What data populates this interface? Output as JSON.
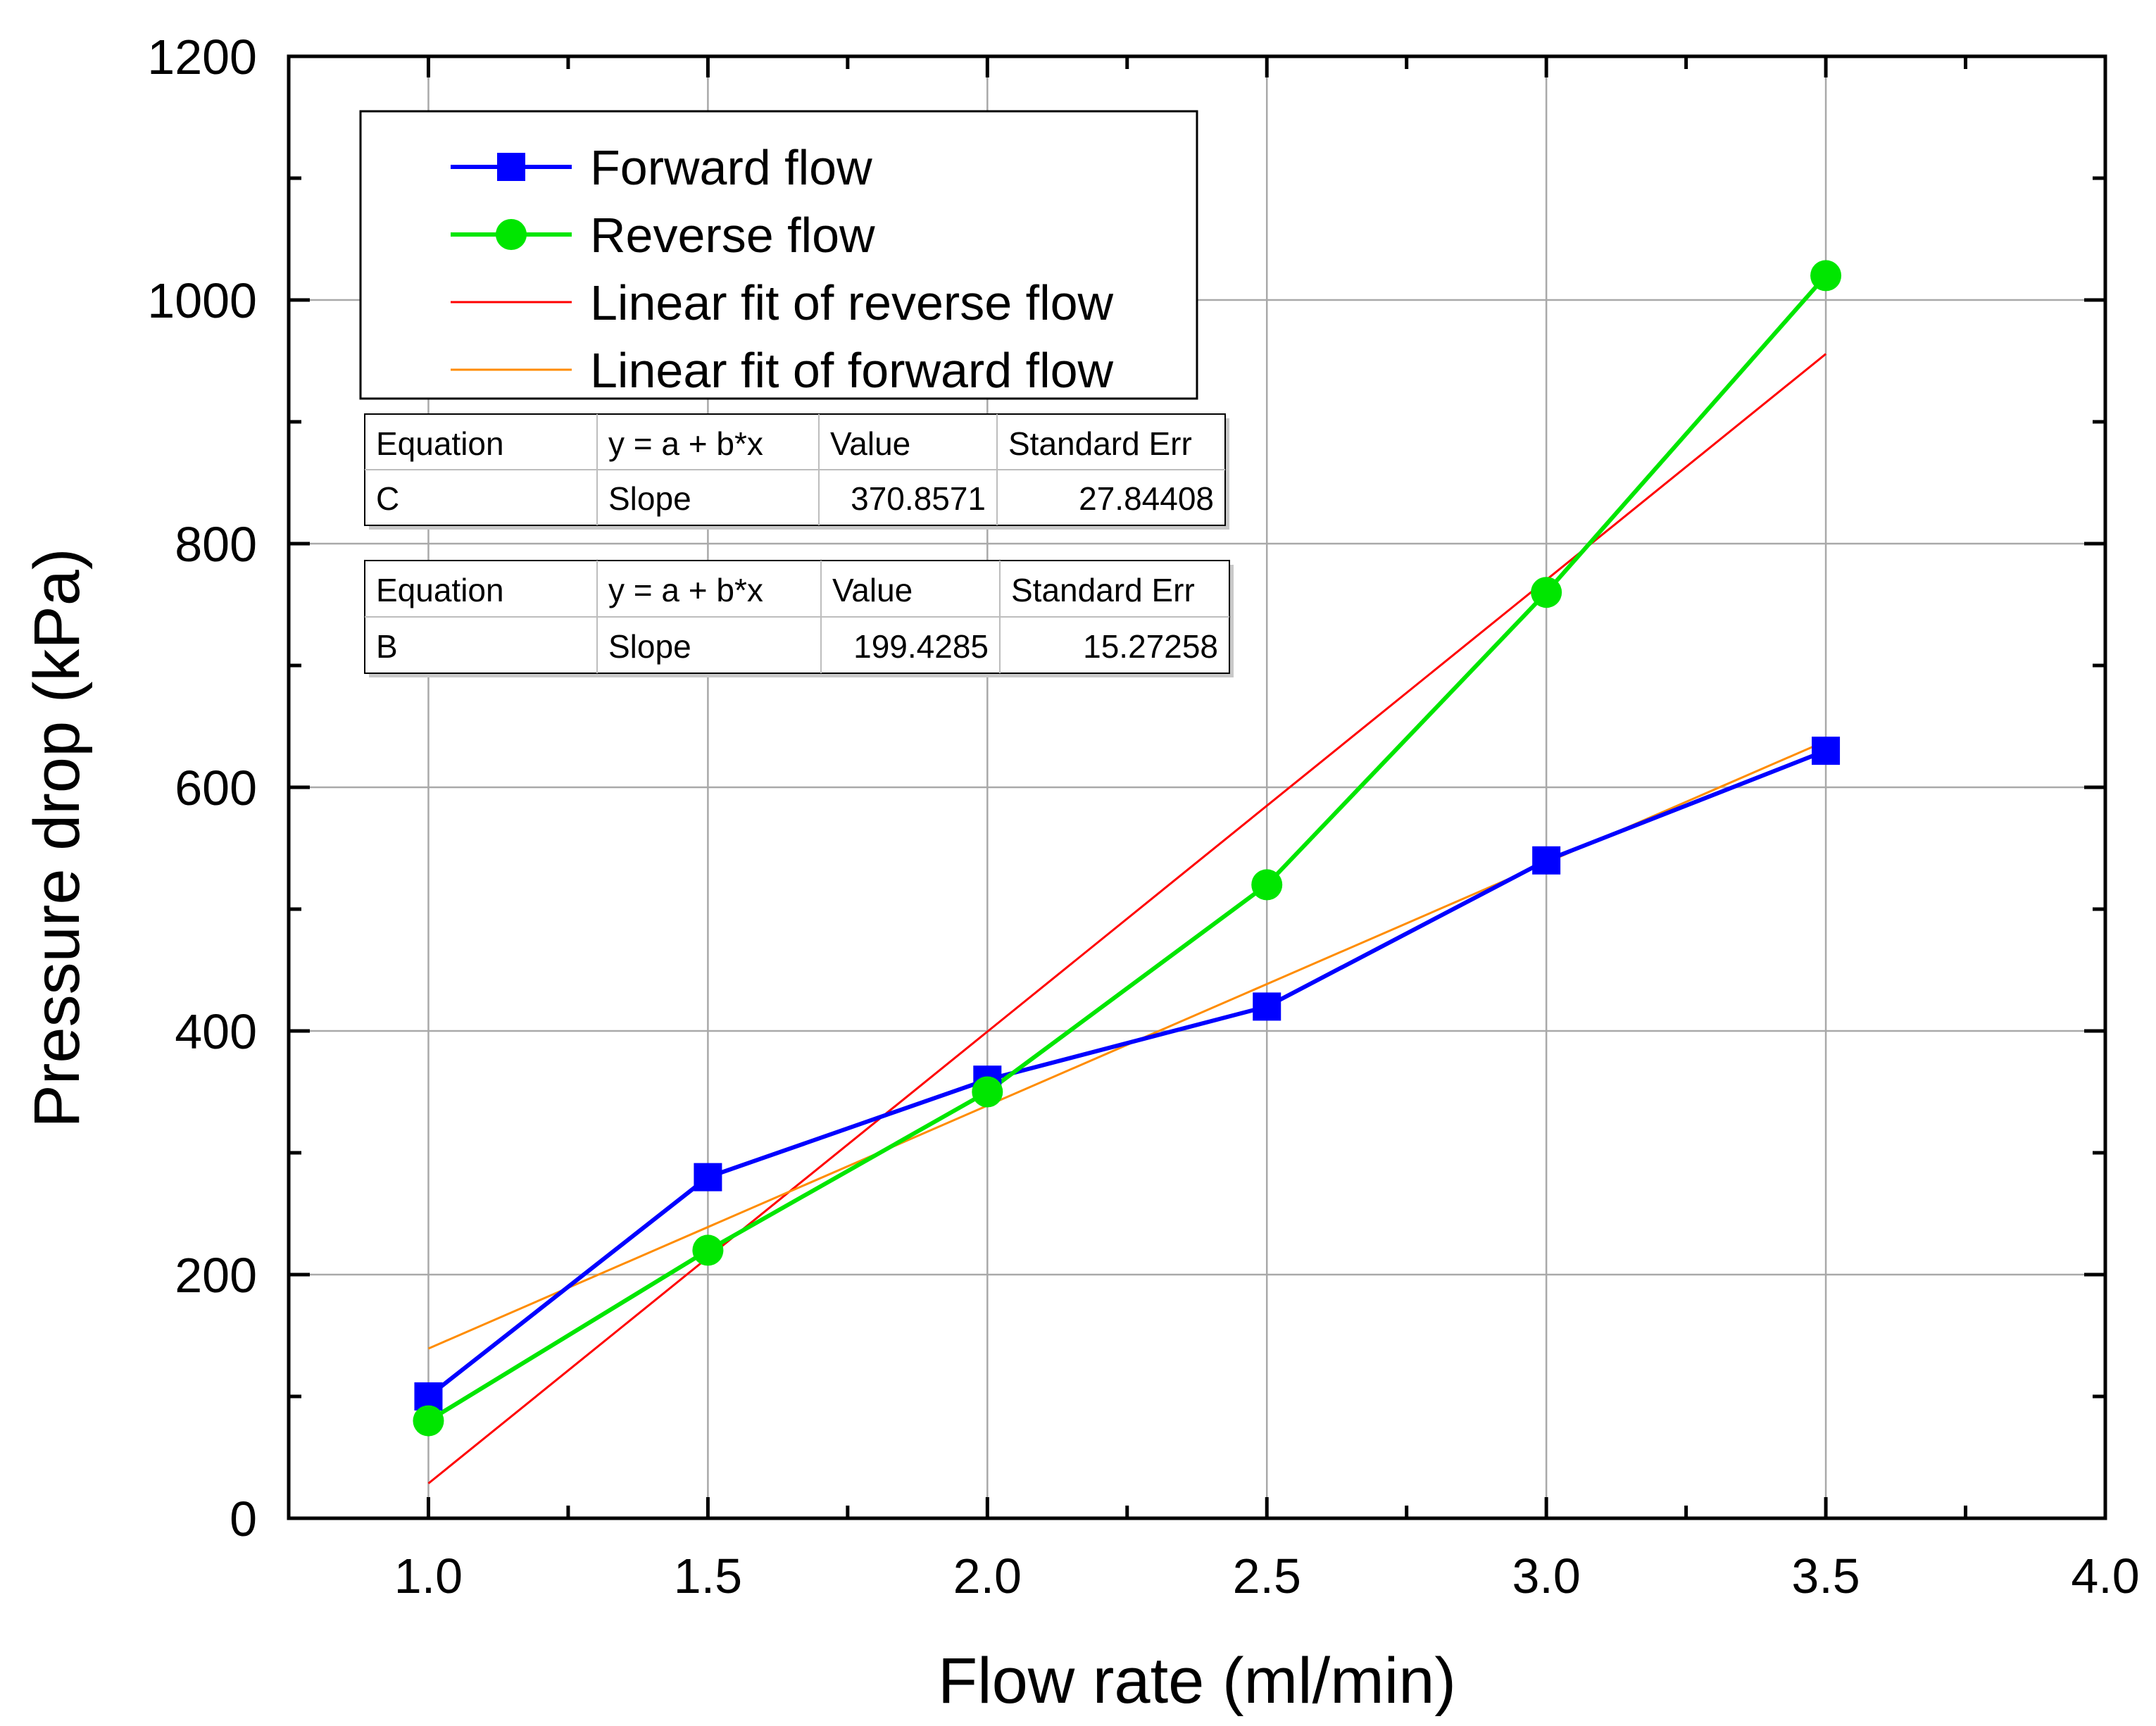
{
  "chart_data": {
    "type": "line",
    "title": "",
    "xlabel": "Flow rate (ml/min)",
    "ylabel": "Pressure drop (kPa)",
    "xlim": [
      0.75,
      4.0
    ],
    "ylim": [
      0,
      1200
    ],
    "x_ticks": [
      1.0,
      1.5,
      2.0,
      2.5,
      3.0,
      3.5,
      4.0
    ],
    "x_tick_labels": [
      "1.0",
      "1.5",
      "2.0",
      "2.5",
      "3.0",
      "3.5",
      "4.0"
    ],
    "y_ticks": [
      0,
      200,
      400,
      600,
      800,
      1000,
      1200
    ],
    "y_tick_labels": [
      "0",
      "200",
      "400",
      "600",
      "800",
      "1000",
      "1200"
    ],
    "grid": true,
    "legend_position": "top-left",
    "series": [
      {
        "name": "Forward flow",
        "color": "#0000ff",
        "marker": "square",
        "x": [
          1.0,
          1.5,
          2.0,
          2.5,
          3.0,
          3.5
        ],
        "values": [
          100,
          280,
          360,
          420,
          540,
          630
        ]
      },
      {
        "name": "Reverse flow",
        "color": "#00e600",
        "marker": "circle",
        "x": [
          1.0,
          1.5,
          2.0,
          2.5,
          3.0,
          3.5
        ],
        "values": [
          80,
          220,
          350,
          520,
          760,
          1020
        ]
      },
      {
        "name": "Linear fit of reverse flow",
        "color": "#ff0000",
        "marker": "none",
        "x": [
          1.0,
          3.5
        ],
        "values": [
          28.6,
          955.7
        ]
      },
      {
        "name": "Linear fit of forward flow",
        "color": "#ff8c00",
        "marker": "none",
        "x": [
          1.0,
          3.5
        ],
        "values": [
          139.3,
          637.9
        ]
      }
    ],
    "fit_tables": [
      {
        "header": [
          "Equation",
          "y = a + b*x",
          "Value",
          "Standard Err"
        ],
        "row": [
          "C",
          "Slope",
          "370.8571",
          "27.84408"
        ]
      },
      {
        "header": [
          "Equation",
          "y = a + b*x",
          "Value",
          "Standard Err"
        ],
        "row": [
          "B",
          "Slope",
          "199.4285",
          "15.27258"
        ]
      }
    ]
  }
}
